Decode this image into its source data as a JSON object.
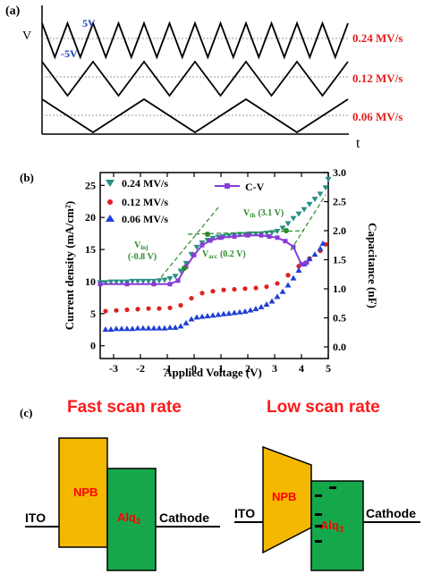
{
  "panel_a": {
    "label": "(a)",
    "y_axis": "V",
    "x_axis": "t",
    "amplitude_pos": "5V",
    "amplitude_neg": "-5V",
    "rates": [
      "0.24 MV/s",
      "0.12 MV/s",
      "0.06 MV/s"
    ],
    "colors": {
      "wave": "#000000",
      "amp_label": "#1a3fbf",
      "rate_label": "#e02020",
      "dash": "#999999"
    }
  },
  "panel_b": {
    "label": "(b)",
    "annotations": {
      "vinj_1": "V",
      "vinj_sub": "inj",
      "vinj_2": "(-0.8 V)",
      "vacc_1": "V",
      "vacc_sub": "acc",
      "vacc_2": "(0.2 V)",
      "vth_1": "V",
      "vth_sub": "th",
      "vth_2": "(3.1 V)"
    }
  },
  "panel_c": {
    "label": "(c)",
    "fast_title": "Fast scan rate",
    "slow_title": "Low scan rate",
    "ito": "ITO",
    "npb": "NPB",
    "alq": "Alq",
    "alq_sub": "3",
    "cathode": "Cathode",
    "colors": {
      "title": "#ff1a1a",
      "npb_fill": "#f5b800",
      "alq_fill": "#15a84b",
      "text_red": "#ff0000"
    }
  },
  "chart_data": {
    "type": "scatter",
    "xlabel": "Applied Voltage (V)",
    "ylabel": "Current density (mA/cm²)",
    "y2label": "Capacitance (nF)",
    "xlim": [
      -3.5,
      5
    ],
    "ylim": [
      -2,
      27
    ],
    "y2lim": [
      -0.2,
      3.0
    ],
    "x_ticks": [
      "-3",
      "-2",
      "-1",
      "0",
      "1",
      "2",
      "3",
      "4",
      "5"
    ],
    "y_ticks": [
      "0",
      "5",
      "10",
      "15",
      "20",
      "25"
    ],
    "y2_ticks": [
      "0.0",
      "0.5",
      "1.0",
      "1.5",
      "2.0",
      "2.5",
      "3.0"
    ],
    "grid": false,
    "legend_position": "top-left",
    "series": [
      {
        "name": "0.24 MV/s",
        "marker": "triangle-down",
        "color": "#2a8f86",
        "axis": "left",
        "points": [
          [
            -3.5,
            9.8
          ],
          [
            -3.3,
            9.8
          ],
          [
            -3.1,
            9.9
          ],
          [
            -2.9,
            9.9
          ],
          [
            -2.7,
            9.9
          ],
          [
            -2.5,
            9.9
          ],
          [
            -2.3,
            10.0
          ],
          [
            -2.1,
            10.0
          ],
          [
            -1.9,
            10.0
          ],
          [
            -1.7,
            10.0
          ],
          [
            -1.5,
            10.0
          ],
          [
            -1.3,
            10.1
          ],
          [
            -1.1,
            10.2
          ],
          [
            -0.9,
            10.4
          ],
          [
            -0.7,
            10.8
          ],
          [
            -0.5,
            11.6
          ],
          [
            -0.3,
            12.8
          ],
          [
            -0.1,
            14.2
          ],
          [
            0.1,
            15.3
          ],
          [
            0.3,
            16.0
          ],
          [
            0.5,
            16.4
          ],
          [
            0.7,
            16.7
          ],
          [
            0.9,
            16.9
          ],
          [
            1.1,
            17.0
          ],
          [
            1.3,
            17.1
          ],
          [
            1.5,
            17.2
          ],
          [
            1.7,
            17.3
          ],
          [
            1.9,
            17.3
          ],
          [
            2.1,
            17.4
          ],
          [
            2.3,
            17.4
          ],
          [
            2.5,
            17.4
          ],
          [
            2.7,
            17.5
          ],
          [
            2.9,
            17.6
          ],
          [
            3.1,
            17.8
          ],
          [
            3.3,
            18.3
          ],
          [
            3.5,
            19.0
          ],
          [
            3.7,
            19.8
          ],
          [
            3.9,
            20.5
          ],
          [
            4.1,
            21.2
          ],
          [
            4.3,
            22.0
          ],
          [
            4.5,
            22.8
          ],
          [
            4.7,
            23.6
          ],
          [
            4.9,
            24.6
          ],
          [
            5.0,
            25.9
          ]
        ]
      },
      {
        "name": "0.12 MV/s",
        "marker": "circle",
        "color": "#e02020",
        "axis": "left",
        "points": [
          [
            -3.3,
            5.4
          ],
          [
            -2.9,
            5.5
          ],
          [
            -2.5,
            5.6
          ],
          [
            -2.1,
            5.7
          ],
          [
            -1.7,
            5.8
          ],
          [
            -1.3,
            5.8
          ],
          [
            -0.9,
            5.9
          ],
          [
            -0.5,
            6.3
          ],
          [
            -0.1,
            7.4
          ],
          [
            0.3,
            8.2
          ],
          [
            0.7,
            8.5
          ],
          [
            1.1,
            8.7
          ],
          [
            1.5,
            8.8
          ],
          [
            1.9,
            8.9
          ],
          [
            2.3,
            9.0
          ],
          [
            2.7,
            9.2
          ],
          [
            3.1,
            9.7
          ],
          [
            3.5,
            11.0
          ],
          [
            3.9,
            12.4
          ],
          [
            4.3,
            13.6
          ],
          [
            4.7,
            14.8
          ],
          [
            4.9,
            15.8
          ]
        ]
      },
      {
        "name": "0.06 MV/s",
        "marker": "triangle-up",
        "color": "#1f3fd6",
        "axis": "left",
        "points": [
          [
            -3.3,
            2.6
          ],
          [
            -3.1,
            2.6
          ],
          [
            -2.9,
            2.7
          ],
          [
            -2.7,
            2.7
          ],
          [
            -2.5,
            2.7
          ],
          [
            -2.3,
            2.7
          ],
          [
            -2.1,
            2.8
          ],
          [
            -1.9,
            2.8
          ],
          [
            -1.7,
            2.8
          ],
          [
            -1.5,
            2.8
          ],
          [
            -1.3,
            2.8
          ],
          [
            -1.1,
            2.8
          ],
          [
            -0.9,
            2.9
          ],
          [
            -0.7,
            2.9
          ],
          [
            -0.5,
            3.1
          ],
          [
            -0.3,
            3.6
          ],
          [
            -0.1,
            4.2
          ],
          [
            0.1,
            4.5
          ],
          [
            0.3,
            4.6
          ],
          [
            0.5,
            4.7
          ],
          [
            0.7,
            4.8
          ],
          [
            0.9,
            4.9
          ],
          [
            1.1,
            5.0
          ],
          [
            1.3,
            5.1
          ],
          [
            1.5,
            5.2
          ],
          [
            1.7,
            5.3
          ],
          [
            1.9,
            5.4
          ],
          [
            2.1,
            5.6
          ],
          [
            2.3,
            5.8
          ],
          [
            2.5,
            6.1
          ],
          [
            2.7,
            6.5
          ],
          [
            2.9,
            7.0
          ],
          [
            3.1,
            7.7
          ],
          [
            3.3,
            8.5
          ],
          [
            3.5,
            9.5
          ],
          [
            3.7,
            10.6
          ],
          [
            3.9,
            11.8
          ],
          [
            4.1,
            12.8
          ],
          [
            4.3,
            13.6
          ],
          [
            4.5,
            14.3
          ],
          [
            4.7,
            15.2
          ],
          [
            4.8,
            16.0
          ]
        ]
      },
      {
        "name": "C-V",
        "marker": "square-line",
        "color": "#8a3ad6",
        "axis": "right",
        "points": [
          [
            -3.5,
            1.08
          ],
          [
            -2.5,
            1.08
          ],
          [
            -1.5,
            1.08
          ],
          [
            -0.9,
            1.08
          ],
          [
            -0.6,
            1.14
          ],
          [
            -0.3,
            1.38
          ],
          [
            0.0,
            1.58
          ],
          [
            0.3,
            1.75
          ],
          [
            0.6,
            1.83
          ],
          [
            1.0,
            1.88
          ],
          [
            1.5,
            1.9
          ],
          [
            2.0,
            1.92
          ],
          [
            2.5,
            1.92
          ],
          [
            2.8,
            1.9
          ],
          [
            3.1,
            1.88
          ],
          [
            3.4,
            1.82
          ],
          [
            3.7,
            1.72
          ],
          [
            4.0,
            1.42
          ],
          [
            4.2,
            1.45
          ]
        ]
      }
    ]
  }
}
